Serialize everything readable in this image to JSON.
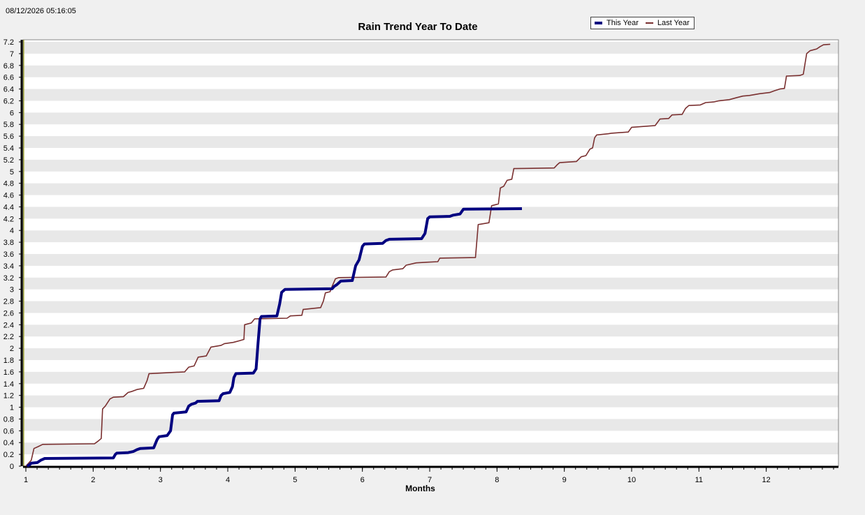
{
  "timestamp": "08/12/2026 05:16:05",
  "chart_data": {
    "type": "line",
    "title": "Rain Trend Year To Date",
    "xlabel": "Months",
    "ylabel": "",
    "xlim": [
      1,
      13
    ],
    "ylim": [
      0,
      7.2
    ],
    "x_ticks": [
      1,
      2,
      3,
      4,
      5,
      6,
      7,
      8,
      9,
      10,
      11,
      12
    ],
    "y_ticks": [
      0,
      0.2,
      0.4,
      0.6,
      0.8,
      1,
      1.2,
      1.4,
      1.6,
      1.8,
      2,
      2.2,
      2.4,
      2.6,
      2.8,
      3,
      3.2,
      3.4,
      3.6,
      3.8,
      4,
      4.2,
      4.4,
      4.6,
      4.8,
      5,
      5.2,
      5.4,
      5.6,
      5.8,
      6,
      6.2,
      6.4,
      6.6,
      6.8,
      7,
      7.2
    ],
    "grid": "alternating horizontal bands",
    "legend_position": "top-right",
    "series": [
      {
        "name": "This Year",
        "color": "#000080",
        "points": [
          [
            1.02,
            0
          ],
          [
            1.05,
            0.02
          ],
          [
            1.08,
            0.05
          ],
          [
            1.17,
            0.06
          ],
          [
            1.22,
            0.1
          ],
          [
            1.28,
            0.13
          ],
          [
            2.3,
            0.14
          ],
          [
            2.33,
            0.2
          ],
          [
            2.35,
            0.22
          ],
          [
            2.52,
            0.23
          ],
          [
            2.6,
            0.25
          ],
          [
            2.65,
            0.28
          ],
          [
            2.7,
            0.3
          ],
          [
            2.9,
            0.31
          ],
          [
            2.95,
            0.45
          ],
          [
            2.98,
            0.5
          ],
          [
            3.1,
            0.52
          ],
          [
            3.15,
            0.6
          ],
          [
            3.18,
            0.87
          ],
          [
            3.2,
            0.9
          ],
          [
            3.38,
            0.92
          ],
          [
            3.42,
            1.02
          ],
          [
            3.46,
            1.05
          ],
          [
            3.52,
            1.07
          ],
          [
            3.55,
            1.1
          ],
          [
            3.87,
            1.11
          ],
          [
            3.9,
            1.2
          ],
          [
            3.93,
            1.23
          ],
          [
            4.03,
            1.25
          ],
          [
            4.07,
            1.35
          ],
          [
            4.09,
            1.5
          ],
          [
            4.12,
            1.57
          ],
          [
            4.38,
            1.58
          ],
          [
            4.42,
            1.65
          ],
          [
            4.45,
            2.1
          ],
          [
            4.48,
            2.5
          ],
          [
            4.5,
            2.54
          ],
          [
            4.73,
            2.55
          ],
          [
            4.77,
            2.75
          ],
          [
            4.8,
            2.95
          ],
          [
            4.85,
            3
          ],
          [
            5.55,
            3.01
          ],
          [
            5.58,
            3.05
          ],
          [
            5.62,
            3.08
          ],
          [
            5.68,
            3.14
          ],
          [
            5.85,
            3.15
          ],
          [
            5.9,
            3.4
          ],
          [
            5.95,
            3.5
          ],
          [
            6.0,
            3.73
          ],
          [
            6.03,
            3.77
          ],
          [
            6.3,
            3.78
          ],
          [
            6.35,
            3.83
          ],
          [
            6.4,
            3.85
          ],
          [
            6.88,
            3.86
          ],
          [
            6.93,
            3.95
          ],
          [
            6.97,
            4.2
          ],
          [
            7.0,
            4.23
          ],
          [
            7.3,
            4.24
          ],
          [
            7.35,
            4.26
          ],
          [
            7.45,
            4.28
          ],
          [
            7.5,
            4.36
          ],
          [
            8.37,
            4.37
          ]
        ]
      },
      {
        "name": "Last Year",
        "color": "#7a3030",
        "points": [
          [
            1,
            0
          ],
          [
            1.08,
            0.1
          ],
          [
            1.12,
            0.3
          ],
          [
            1.18,
            0.33
          ],
          [
            1.25,
            0.37
          ],
          [
            2.02,
            0.38
          ],
          [
            2.08,
            0.43
          ],
          [
            2.12,
            0.47
          ],
          [
            2.14,
            0.97
          ],
          [
            2.18,
            1.02
          ],
          [
            2.25,
            1.14
          ],
          [
            2.3,
            1.17
          ],
          [
            2.45,
            1.18
          ],
          [
            2.52,
            1.25
          ],
          [
            2.58,
            1.27
          ],
          [
            2.65,
            1.3
          ],
          [
            2.75,
            1.32
          ],
          [
            2.8,
            1.45
          ],
          [
            2.83,
            1.57
          ],
          [
            3.36,
            1.6
          ],
          [
            3.42,
            1.68
          ],
          [
            3.5,
            1.7
          ],
          [
            3.56,
            1.85
          ],
          [
            3.68,
            1.87
          ],
          [
            3.75,
            2.02
          ],
          [
            3.9,
            2.05
          ],
          [
            3.95,
            2.08
          ],
          [
            4.08,
            2.1
          ],
          [
            4.18,
            2.13
          ],
          [
            4.24,
            2.15
          ],
          [
            4.25,
            2.4
          ],
          [
            4.35,
            2.43
          ],
          [
            4.4,
            2.5
          ],
          [
            4.88,
            2.51
          ],
          [
            4.93,
            2.55
          ],
          [
            5.1,
            2.56
          ],
          [
            5.12,
            2.66
          ],
          [
            5.38,
            2.69
          ],
          [
            5.42,
            2.8
          ],
          [
            5.45,
            2.94
          ],
          [
            5.52,
            2.96
          ],
          [
            5.55,
            3.05
          ],
          [
            5.6,
            3.18
          ],
          [
            5.65,
            3.2
          ],
          [
            6.35,
            3.21
          ],
          [
            6.4,
            3.3
          ],
          [
            6.45,
            3.33
          ],
          [
            6.6,
            3.35
          ],
          [
            6.65,
            3.41
          ],
          [
            6.8,
            3.45
          ],
          [
            6.95,
            3.46
          ],
          [
            7.12,
            3.47
          ],
          [
            7.15,
            3.53
          ],
          [
            7.68,
            3.54
          ],
          [
            7.72,
            4.1
          ],
          [
            7.88,
            4.13
          ],
          [
            7.92,
            4.42
          ],
          [
            8.02,
            4.45
          ],
          [
            8.05,
            4.72
          ],
          [
            8.1,
            4.75
          ],
          [
            8.15,
            4.85
          ],
          [
            8.22,
            4.87
          ],
          [
            8.25,
            5.05
          ],
          [
            8.85,
            5.06
          ],
          [
            8.9,
            5.12
          ],
          [
            8.93,
            5.15
          ],
          [
            9.18,
            5.17
          ],
          [
            9.25,
            5.25
          ],
          [
            9.32,
            5.27
          ],
          [
            9.38,
            5.38
          ],
          [
            9.42,
            5.4
          ],
          [
            9.45,
            5.57
          ],
          [
            9.48,
            5.62
          ],
          [
            9.65,
            5.64
          ],
          [
            9.7,
            5.65
          ],
          [
            9.95,
            5.67
          ],
          [
            10.0,
            5.75
          ],
          [
            10.35,
            5.78
          ],
          [
            10.42,
            5.89
          ],
          [
            10.55,
            5.9
          ],
          [
            10.6,
            5.96
          ],
          [
            10.75,
            5.97
          ],
          [
            10.8,
            6.07
          ],
          [
            10.85,
            6.12
          ],
          [
            11.02,
            6.13
          ],
          [
            11.1,
            6.17
          ],
          [
            11.22,
            6.18
          ],
          [
            11.3,
            6.2
          ],
          [
            11.45,
            6.22
          ],
          [
            11.55,
            6.25
          ],
          [
            11.65,
            6.28
          ],
          [
            11.75,
            6.29
          ],
          [
            11.9,
            6.32
          ],
          [
            12.05,
            6.34
          ],
          [
            12.12,
            6.37
          ],
          [
            12.2,
            6.4
          ],
          [
            12.27,
            6.41
          ],
          [
            12.3,
            6.62
          ],
          [
            12.5,
            6.63
          ],
          [
            12.55,
            6.65
          ],
          [
            12.6,
            7.0
          ],
          [
            12.65,
            7.05
          ],
          [
            12.75,
            7.08
          ],
          [
            12.8,
            7.12
          ],
          [
            12.85,
            7.15
          ],
          [
            12.95,
            7.16
          ]
        ]
      }
    ]
  }
}
